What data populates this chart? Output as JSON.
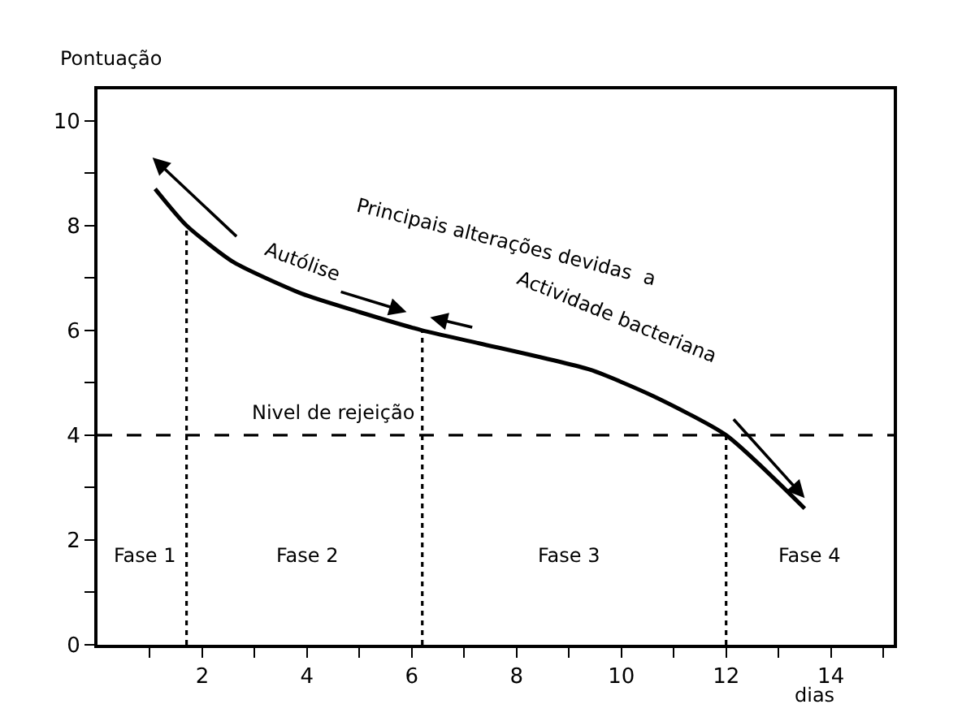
{
  "chart_data": {
    "type": "line",
    "xlabel": "dias",
    "ylabel": "Pontuação",
    "x": [
      1.1,
      1.7,
      2.6,
      3.9,
      5.0,
      6.2,
      7.3,
      9.4,
      10.6,
      12.0,
      13.5
    ],
    "values": [
      8.7,
      8.0,
      7.3,
      6.7,
      6.35,
      6.0,
      5.75,
      5.25,
      4.75,
      4.0,
      2.6
    ],
    "color": "#000000",
    "line_style": "solid",
    "marker": "none",
    "xlim": [
      0,
      15.2
    ],
    "ylim": [
      0,
      10.6
    ],
    "xticks": [
      {
        "value": 1,
        "label": null
      },
      2,
      {
        "value": 3,
        "label": null
      },
      4,
      {
        "value": 5,
        "label": null
      },
      6,
      {
        "value": 7,
        "label": null
      },
      8,
      {
        "value": 9,
        "label": null
      },
      10,
      {
        "value": 11,
        "label": null
      },
      12,
      {
        "value": 13,
        "label": null
      },
      14,
      {
        "value": 15,
        "label": null
      }
    ],
    "yticks": [
      0,
      {
        "value": 1,
        "label": null
      },
      2,
      {
        "value": 3,
        "label": null
      },
      4,
      {
        "value": 5,
        "label": null
      },
      6,
      {
        "value": 7,
        "label": null
      },
      8,
      {
        "value": 9,
        "label": null
      },
      10
    ],
    "ref_lines": [
      {
        "axis": "y",
        "value": 4,
        "label": "Nivel de rejeição",
        "line_style": "dashed",
        "color": "#000000"
      },
      {
        "axis": "x",
        "value": 1.7,
        "line_style": "dotted",
        "color": "#000000"
      },
      {
        "axis": "x",
        "value": 6.2,
        "line_style": "dotted",
        "color": "#000000"
      },
      {
        "axis": "x",
        "value": 12,
        "line_style": "dotted",
        "color": "#000000"
      }
    ],
    "annotations": [
      "Fase 1",
      "Fase 2",
      "Fase 3",
      "Fase 4",
      "Principais alterações devidas  a",
      "Autólise",
      "Actividade bacteriana"
    ]
  }
}
